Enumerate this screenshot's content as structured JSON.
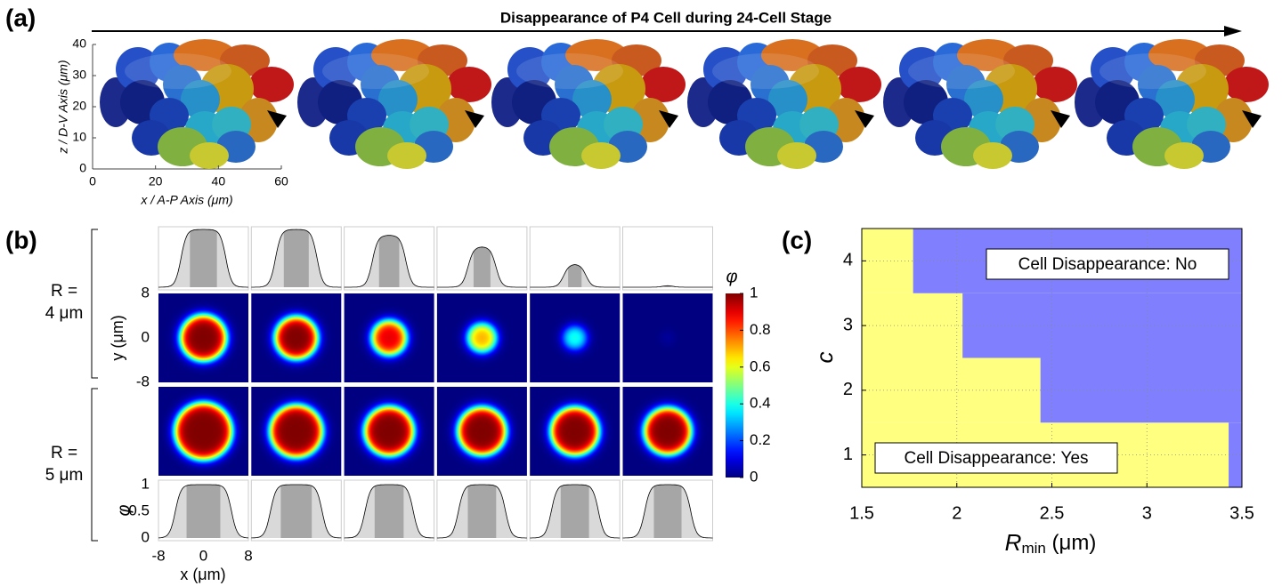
{
  "panel_a": {
    "label": "(a)",
    "title": "Disappearance of P4 Cell during 24-Cell Stage",
    "xlabel": "x / A-P Axis (μm)",
    "ylabel": "z / D-V Axis (μm)",
    "xlim": [
      0,
      60
    ],
    "ylim": [
      0,
      40
    ],
    "xticks": [
      0,
      20,
      40,
      60
    ],
    "yticks": [
      0,
      10,
      20,
      30,
      40
    ]
  },
  "panel_b": {
    "label": "(b)",
    "row_labels": [
      [
        "R =",
        "4 μm"
      ],
      [
        "R =",
        "5 μm"
      ]
    ],
    "ylabel": "y (μm)",
    "xlabel": "x (μm)",
    "profile_ylabel": "φ",
    "colorbar_label": "φ",
    "xlim": [
      -8,
      8
    ],
    "ylim": [
      -8,
      8
    ],
    "xticks": [
      -8,
      0,
      8
    ],
    "yticks": [
      8,
      0,
      -8
    ],
    "profile_ylim": [
      0,
      1
    ],
    "profile_yticks": [
      1,
      0.5,
      0
    ],
    "clim": [
      0,
      1
    ],
    "colorbar_ticks": [
      1,
      0.8,
      0.6,
      0.4,
      0.2,
      0
    ],
    "colormap": "jet",
    "rows": [
      {
        "peaks": [
          1,
          1,
          0.9,
          0.7,
          0.4,
          0.03
        ],
        "radii": [
          4,
          3.7,
          3,
          2.5,
          2,
          1
        ]
      },
      {
        "peaks": [
          1,
          1,
          1,
          1,
          1,
          1
        ],
        "radii": [
          5,
          4.6,
          4.3,
          4.2,
          4.2,
          4.1
        ]
      }
    ]
  },
  "panel_c": {
    "label": "(c)",
    "xlabel": "R",
    "xlabel_sub": "min",
    "xlabel_unit": " (μm)",
    "ylabel": "c",
    "xlim": [
      1.5,
      3.5
    ],
    "ylim": [
      0.5,
      4.5
    ],
    "xticks": [
      1.5,
      2,
      2.5,
      3,
      3.5
    ],
    "yticks": [
      1,
      2,
      3,
      4
    ],
    "grid": true,
    "annotations": [
      "Cell Disappearance: No",
      "Cell Disappearance: Yes"
    ],
    "c": [
      1,
      2,
      3,
      4
    ],
    "rmin_threshold": [
      3.43,
      2.44,
      2.03,
      1.77
    ],
    "colors": {
      "yes": "#ffff80",
      "no": "#8080ff"
    }
  }
}
